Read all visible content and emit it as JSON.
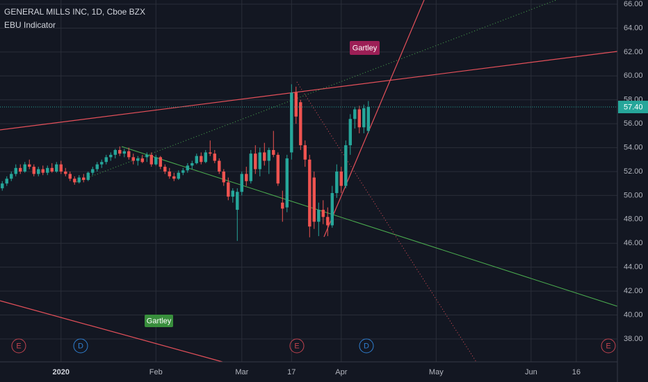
{
  "chart_data": {
    "type": "candlestick",
    "title": "GENERAL MILLS INC, 1D, Cboe BZX",
    "subtitle": "EBU Indicator",
    "up_color": "#26a69a",
    "down_color": "#ef5350",
    "x": [
      -13,
      -12,
      -11,
      -10,
      -9,
      -8,
      -7,
      -6,
      -5,
      -4,
      -3,
      -2,
      -1,
      0,
      1,
      2,
      3,
      4,
      5,
      6,
      7,
      8,
      9,
      10,
      11,
      12,
      13,
      14,
      15,
      16,
      17,
      18,
      19,
      20,
      21,
      22,
      23,
      24,
      25,
      26,
      27,
      28,
      29,
      30,
      31,
      32,
      33,
      34,
      35,
      36,
      37,
      38,
      39,
      40,
      41,
      42,
      43,
      44,
      45,
      46,
      47,
      48,
      49,
      50,
      51,
      52,
      53,
      54,
      55,
      56,
      57,
      58,
      59,
      60,
      61,
      62,
      63,
      64,
      65,
      66,
      67,
      68
    ],
    "open": [
      50.6,
      51.0,
      51.4,
      51.8,
      52.3,
      52.0,
      52.6,
      52.4,
      51.8,
      52.2,
      51.9,
      52.3,
      52.0,
      52.6,
      52.0,
      51.8,
      51.4,
      51.1,
      51.5,
      51.3,
      51.9,
      52.2,
      52.6,
      52.8,
      53.2,
      53.4,
      53.8,
      53.5,
      53.7,
      53.2,
      52.9,
      53.1,
      53.2,
      53.4,
      52.6,
      53.2,
      52.4,
      52.0,
      51.6,
      51.4,
      51.9,
      52.1,
      52.5,
      52.7,
      53.3,
      52.8,
      53.6,
      53.5,
      52.9,
      52.0,
      51.1,
      49.9,
      48.8,
      50.3,
      51.8,
      51.2,
      53.5,
      52.2,
      53.6,
      52.9,
      53.8,
      53.4,
      49.4,
      49.0,
      53.6,
      58.6,
      57.8,
      54.2,
      53.0,
      51.5,
      47.8,
      48.8,
      48.2,
      47.5,
      50.2,
      52.0,
      50.8,
      54.2,
      56.4,
      57.2,
      55.7,
      55.4
    ],
    "high": [
      51.2,
      51.6,
      52.0,
      52.6,
      52.6,
      52.8,
      53.0,
      52.6,
      52.4,
      52.5,
      52.5,
      52.7,
      52.8,
      52.9,
      52.3,
      52.0,
      51.6,
      51.7,
      51.8,
      52.0,
      52.4,
      52.8,
      53.0,
      53.4,
      53.6,
      53.9,
      54.1,
      53.9,
      54.0,
      53.5,
      53.3,
      53.4,
      53.6,
      53.6,
      53.4,
      53.3,
      52.6,
      52.3,
      51.9,
      52.1,
      52.3,
      52.7,
      52.9,
      53.5,
      53.6,
      53.8,
      54.6,
      53.8,
      53.1,
      52.2,
      51.5,
      50.6,
      50.6,
      52.0,
      52.4,
      53.8,
      54.2,
      54.0,
      54.4,
      54.0,
      55.4,
      53.6,
      50.4,
      53.4,
      59.3,
      59.1,
      58.0,
      54.6,
      53.4,
      52.0,
      49.4,
      49.6,
      49.0,
      50.8,
      52.6,
      52.4,
      54.6,
      56.8,
      57.4,
      57.5,
      57.6,
      57.9
    ],
    "low": [
      50.4,
      50.8,
      51.2,
      51.6,
      51.8,
      51.9,
      52.2,
      51.6,
      51.6,
      51.7,
      51.7,
      51.9,
      51.9,
      51.8,
      51.6,
      51.2,
      50.9,
      51.0,
      51.1,
      51.2,
      51.7,
      52.0,
      52.3,
      52.6,
      52.9,
      53.1,
      53.3,
      53.2,
      53.0,
      52.6,
      52.5,
      52.7,
      52.8,
      52.4,
      52.5,
      52.2,
      51.8,
      51.4,
      51.2,
      51.3,
      51.7,
      51.9,
      52.2,
      52.6,
      52.6,
      52.7,
      53.3,
      52.7,
      51.8,
      50.8,
      49.6,
      49.4,
      46.2,
      50.0,
      50.8,
      51.0,
      51.8,
      51.6,
      52.5,
      51.8,
      53.2,
      50.8,
      47.8,
      48.6,
      53.0,
      56.0,
      53.8,
      52.4,
      46.5,
      47.2,
      46.6,
      47.6,
      46.6,
      47.3,
      49.8,
      50.2,
      50.6,
      53.4,
      55.6,
      55.2,
      55.2,
      55.2
    ],
    "close": [
      51.0,
      51.4,
      51.8,
      52.3,
      52.0,
      52.6,
      52.4,
      51.8,
      52.2,
      51.9,
      52.3,
      52.0,
      52.6,
      52.0,
      51.8,
      51.4,
      51.1,
      51.5,
      51.3,
      51.9,
      52.2,
      52.6,
      52.8,
      53.2,
      53.4,
      53.8,
      53.5,
      53.7,
      53.2,
      52.9,
      53.1,
      52.8,
      53.4,
      52.6,
      53.2,
      52.4,
      52.0,
      51.6,
      51.4,
      51.9,
      52.1,
      52.5,
      52.7,
      53.3,
      52.8,
      53.6,
      53.5,
      52.9,
      52.0,
      51.1,
      49.9,
      50.4,
      50.3,
      51.8,
      51.2,
      53.5,
      52.2,
      53.6,
      52.9,
      53.8,
      53.4,
      51.0,
      48.9,
      53.1,
      58.6,
      56.6,
      54.2,
      53.0,
      47.4,
      47.8,
      48.8,
      48.2,
      47.5,
      50.2,
      52.0,
      50.8,
      54.2,
      56.4,
      57.2,
      55.7,
      57.3,
      57.4
    ],
    "xlim": [
      -13.5,
      123.1
    ],
    "xticks": [
      {
        "value": 0,
        "label": "2020"
      },
      {
        "value": 21,
        "label": "Feb"
      },
      {
        "value": 40,
        "label": "Mar"
      },
      {
        "value": 51,
        "label": "17"
      },
      {
        "value": 62,
        "label": "Apr"
      },
      {
        "value": 83,
        "label": "May"
      },
      {
        "value": 104,
        "label": "Jun"
      },
      {
        "value": 114,
        "label": "16"
      }
    ],
    "ylim": [
      36.08,
      66.35
    ],
    "yticks": [
      {
        "value": 38,
        "label": "38.00"
      },
      {
        "value": 40,
        "label": "40.00"
      },
      {
        "value": 42,
        "label": "42.00"
      },
      {
        "value": 44,
        "label": "44.00"
      },
      {
        "value": 46,
        "label": "46.00"
      },
      {
        "value": 48,
        "label": "48.00"
      },
      {
        "value": 50,
        "label": "50.00"
      },
      {
        "value": 52,
        "label": "52.00"
      },
      {
        "value": 54,
        "label": "54.00"
      },
      {
        "value": 56,
        "label": "56.00"
      },
      {
        "value": 58,
        "label": "58.00"
      },
      {
        "value": 60,
        "label": "60.00"
      },
      {
        "value": 62,
        "label": "62.00"
      },
      {
        "value": 64,
        "label": "64.00"
      },
      {
        "value": 66,
        "label": "66.00"
      }
    ],
    "grid": true,
    "last_price": {
      "value": 57.4,
      "label": "57.40"
    },
    "annotations": [
      "Gartley",
      "Gartley"
    ],
    "events": [
      "E",
      "D",
      "E",
      "D",
      "E"
    ]
  }
}
